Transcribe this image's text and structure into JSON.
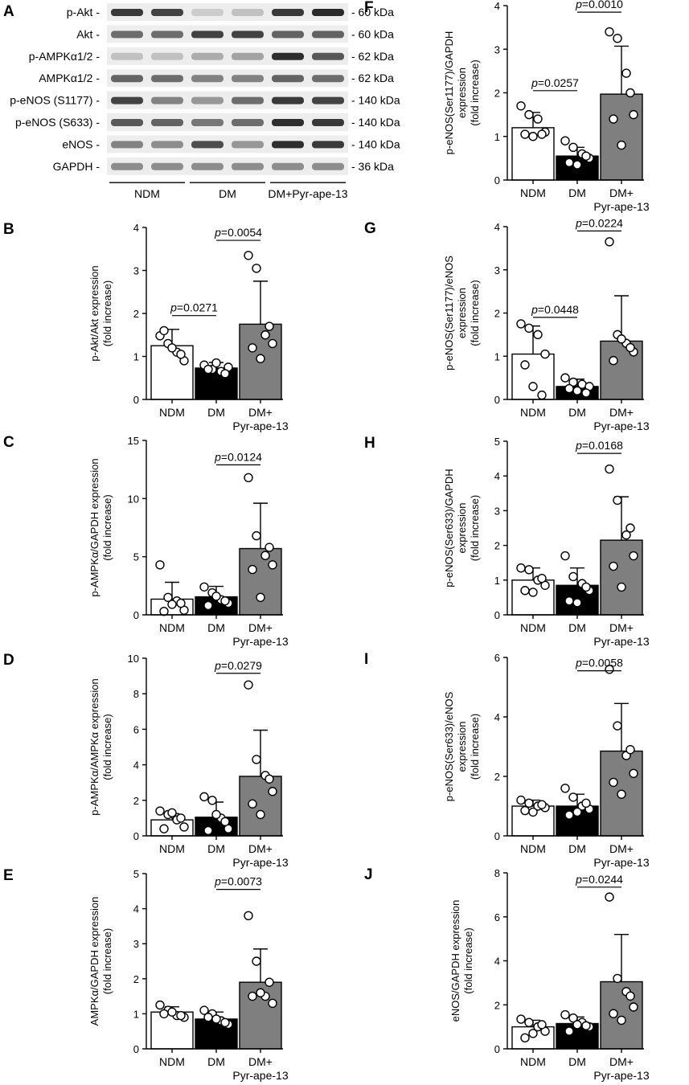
{
  "western_blot": {
    "panel": "A",
    "rows": [
      {
        "label": "p-Akt -",
        "size": "- 60 kDa",
        "intensities": [
          0.85,
          0.8,
          0.15,
          0.2,
          0.85,
          0.92
        ]
      },
      {
        "label": "Akt -",
        "size": "- 60 kDa",
        "intensities": [
          0.6,
          0.6,
          0.8,
          0.8,
          0.65,
          0.65
        ]
      },
      {
        "label": "p-AMPKα1/2 -",
        "size": "- 62 kDa",
        "intensities": [
          0.2,
          0.2,
          0.3,
          0.35,
          0.9,
          0.7
        ]
      },
      {
        "label": "AMPKα1/2 -",
        "size": "- 62 kDa",
        "intensities": [
          0.65,
          0.6,
          0.5,
          0.5,
          0.65,
          0.6
        ]
      },
      {
        "label": "p-eNOS (S1177) -",
        "size": "- 140 kDa",
        "intensities": [
          0.8,
          0.5,
          0.4,
          0.6,
          0.85,
          0.8
        ]
      },
      {
        "label": "p-eNOS (S633) -",
        "size": "- 140 kDa",
        "intensities": [
          0.7,
          0.65,
          0.55,
          0.6,
          0.9,
          0.85
        ]
      },
      {
        "label": "eNOS -",
        "size": "- 140 kDa",
        "intensities": [
          0.5,
          0.45,
          0.75,
          0.4,
          0.9,
          0.85
        ]
      },
      {
        "label": "GAPDH -",
        "size": "- 36 kDa",
        "intensities": [
          0.45,
          0.45,
          0.45,
          0.45,
          0.45,
          0.45
        ]
      }
    ],
    "groups": [
      "NDM",
      "DM",
      "DM+Pyr-ape-13"
    ]
  },
  "chart_data": [
    {
      "panel": "B",
      "type": "bar",
      "ylabel_lines": [
        "p-Akt/Akt expression",
        "(fold increase)"
      ],
      "ylim": [
        0,
        4
      ],
      "yticks": [
        0,
        1,
        2,
        3,
        4
      ],
      "categories": [
        "NDM",
        "DM",
        "DM+",
        "Pyr-ape-13"
      ],
      "bars": [
        {
          "mean": 1.25,
          "sd": 0.38,
          "points": [
            1.48,
            1.3,
            1.1,
            0.9,
            1.6,
            1.2,
            1.05
          ]
        },
        {
          "mean": 0.73,
          "sd": 0.13,
          "points": [
            0.8,
            0.7,
            0.65,
            0.75,
            0.7,
            0.85,
            0.6
          ]
        },
        {
          "mean": 1.75,
          "sd": 1.0,
          "points": [
            3.35,
            3.05,
            1.5,
            1.3,
            1.2,
            0.95,
            1.7
          ]
        }
      ],
      "comparisons": [
        {
          "p": "=0.0271",
          "from": 0,
          "to": 1,
          "y": 1.95
        },
        {
          "p": "=0.0054",
          "from": 1,
          "to": 2,
          "y": 3.7
        }
      ]
    },
    {
      "panel": "C",
      "type": "bar",
      "ylabel_lines": [
        "p-AMPKα/GAPDH expression",
        "(fold increase)"
      ],
      "ylim": [
        0,
        15
      ],
      "yticks": [
        0,
        5,
        10,
        15
      ],
      "categories": [
        "NDM",
        "DM",
        "DM+",
        "Pyr-ape-13"
      ],
      "bars": [
        {
          "mean": 1.35,
          "sd": 1.45,
          "points": [
            4.3,
            1.5,
            1.2,
            0.4,
            0.3,
            0.9,
            1.0
          ]
        },
        {
          "mean": 1.55,
          "sd": 0.9,
          "points": [
            2.4,
            1.9,
            1.3,
            1.0,
            0.8,
            1.6,
            1.2
          ]
        },
        {
          "mean": 5.7,
          "sd": 3.9,
          "points": [
            11.8,
            6.8,
            5.1,
            4.3,
            3.9,
            1.5,
            5.8
          ]
        }
      ],
      "comparisons": [
        {
          "p": "=0.0124",
          "from": 1,
          "to": 2,
          "y": 12.9
        }
      ]
    },
    {
      "panel": "D",
      "type": "bar",
      "ylabel_lines": [
        "p-AMPKα/AMPKα expression",
        "(fold increase)"
      ],
      "ylim": [
        0,
        10
      ],
      "yticks": [
        0,
        2,
        4,
        6,
        8,
        10
      ],
      "categories": [
        "NDM",
        "DM",
        "DM+",
        "Pyr-ape-13"
      ],
      "bars": [
        {
          "mean": 0.9,
          "sd": 0.35,
          "points": [
            1.4,
            1.2,
            0.9,
            0.5,
            0.4,
            1.3,
            1.0
          ]
        },
        {
          "mean": 1.05,
          "sd": 0.85,
          "points": [
            2.2,
            2.0,
            1.0,
            0.4,
            0.3,
            1.2,
            0.8
          ]
        },
        {
          "mean": 3.35,
          "sd": 2.6,
          "points": [
            8.5,
            4.3,
            3.4,
            2.5,
            1.8,
            1.2,
            3.2
          ]
        }
      ],
      "comparisons": [
        {
          "p": "=0.0279",
          "from": 1,
          "to": 2,
          "y": 9.15
        }
      ]
    },
    {
      "panel": "E",
      "type": "bar",
      "ylabel_lines": [
        "AMPKα/GAPDH expression",
        "(fold increase)"
      ],
      "ylim": [
        0,
        5
      ],
      "yticks": [
        0,
        1,
        2,
        3,
        4,
        5
      ],
      "categories": [
        "NDM",
        "DM",
        "DM+",
        "Pyr-ape-13"
      ],
      "bars": [
        {
          "mean": 1.05,
          "sd": 0.15,
          "points": [
            1.25,
            1.1,
            0.95,
            0.9,
            1.0,
            1.05,
            0.95
          ]
        },
        {
          "mean": 0.85,
          "sd": 0.2,
          "points": [
            1.1,
            1.0,
            0.8,
            0.7,
            0.9,
            0.85,
            0.75
          ]
        },
        {
          "mean": 1.9,
          "sd": 0.95,
          "points": [
            3.8,
            2.5,
            1.5,
            1.3,
            1.5,
            1.6,
            1.9
          ]
        }
      ],
      "comparisons": [
        {
          "p": "=0.0073",
          "from": 1,
          "to": 2,
          "y": 4.55
        }
      ]
    },
    {
      "panel": "F",
      "type": "bar",
      "ylabel_lines": [
        "p-eNOS(Ser1177)/GAPDH",
        "expression",
        "(fold increase)"
      ],
      "ylim": [
        0,
        4
      ],
      "yticks": [
        0,
        1,
        2,
        3,
        4
      ],
      "categories": [
        "NDM",
        "DM",
        "DM+",
        "Pyr-ape-13"
      ],
      "bars": [
        {
          "mean": 1.2,
          "sd": 0.35,
          "points": [
            1.7,
            1.5,
            1.4,
            1.1,
            1.05,
            1.0,
            1.05
          ]
        },
        {
          "mean": 0.55,
          "sd": 0.2,
          "points": [
            0.9,
            0.75,
            0.6,
            0.5,
            0.4,
            0.35,
            0.55
          ]
        },
        {
          "mean": 1.97,
          "sd": 1.1,
          "points": [
            3.4,
            3.25,
            2.45,
            1.5,
            1.4,
            0.8,
            2.0
          ]
        }
      ],
      "comparisons": [
        {
          "p": "=0.0257",
          "from": 0,
          "to": 1,
          "y": 2.05
        },
        {
          "p": "=0.0010",
          "from": 1,
          "to": 2,
          "y": 3.85
        }
      ]
    },
    {
      "panel": "G",
      "type": "bar",
      "ylabel_lines": [
        "p-eNOS(Ser1177)/eNOS",
        "expression",
        "(fold increase)"
      ],
      "ylim": [
        0,
        4
      ],
      "yticks": [
        0,
        1,
        2,
        3,
        4
      ],
      "categories": [
        "NDM",
        "DM",
        "DM+",
        "Pyr-ape-13"
      ],
      "bars": [
        {
          "mean": 1.05,
          "sd": 0.65,
          "points": [
            1.75,
            1.65,
            1.5,
            1.05,
            0.8,
            0.3,
            0.1
          ]
        },
        {
          "mean": 0.3,
          "sd": 0.17,
          "points": [
            0.5,
            0.4,
            0.35,
            0.3,
            0.25,
            0.2,
            0.15
          ]
        },
        {
          "mean": 1.35,
          "sd": 1.05,
          "points": [
            3.65,
            1.5,
            1.3,
            1.1,
            0.9,
            1.4,
            1.2
          ]
        }
      ],
      "comparisons": [
        {
          "p": "=0.0448",
          "from": 0,
          "to": 1,
          "y": 1.9
        },
        {
          "p": "=0.0224",
          "from": 1,
          "to": 2,
          "y": 3.9
        }
      ]
    },
    {
      "panel": "H",
      "type": "bar",
      "ylabel_lines": [
        "p-eNOS(Ser633)/GAPDH",
        "expression",
        "(fold increase)"
      ],
      "ylim": [
        0,
        5
      ],
      "yticks": [
        0,
        1,
        2,
        3,
        4,
        5
      ],
      "categories": [
        "NDM",
        "DM",
        "DM+",
        "Pyr-ape-13"
      ],
      "bars": [
        {
          "mean": 1.0,
          "sd": 0.35,
          "points": [
            1.35,
            1.3,
            1.0,
            0.85,
            0.7,
            0.65,
            1.05
          ]
        },
        {
          "mean": 0.85,
          "sd": 0.5,
          "points": [
            1.7,
            1.1,
            0.9,
            0.7,
            0.4,
            0.35,
            0.8
          ]
        },
        {
          "mean": 2.15,
          "sd": 1.25,
          "points": [
            4.2,
            3.3,
            2.3,
            1.7,
            1.4,
            0.8,
            2.5
          ]
        }
      ],
      "comparisons": [
        {
          "p": "=0.0168",
          "from": 1,
          "to": 2,
          "y": 4.65
        }
      ]
    },
    {
      "panel": "I",
      "type": "bar",
      "ylabel_lines": [
        "p-eNOS(Ser633)/eNOS",
        "expression",
        "(fold increase)"
      ],
      "ylim": [
        0,
        6
      ],
      "yticks": [
        0,
        2,
        4,
        6
      ],
      "categories": [
        "NDM",
        "DM",
        "DM+",
        "Pyr-ape-13"
      ],
      "bars": [
        {
          "mean": 1.0,
          "sd": 0.2,
          "points": [
            1.2,
            1.1,
            1.0,
            0.95,
            0.85,
            0.8,
            1.05
          ]
        },
        {
          "mean": 1.0,
          "sd": 0.4,
          "points": [
            1.6,
            1.3,
            1.0,
            0.9,
            0.7,
            0.8,
            1.1
          ]
        },
        {
          "mean": 2.85,
          "sd": 1.6,
          "points": [
            5.6,
            3.7,
            2.7,
            2.1,
            1.8,
            1.4,
            2.9
          ]
        }
      ],
      "comparisons": [
        {
          "p": "=0.0058",
          "from": 1,
          "to": 2,
          "y": 5.55
        }
      ]
    },
    {
      "panel": "J",
      "type": "bar",
      "ylabel_lines": [
        "eNOS/GAPDH expression",
        "(fold increase)"
      ],
      "ylim": [
        0,
        8
      ],
      "yticks": [
        0,
        2,
        4,
        6,
        8
      ],
      "categories": [
        "NDM",
        "DM",
        "DM+",
        "Pyr-ape-13"
      ],
      "bars": [
        {
          "mean": 1.0,
          "sd": 0.3,
          "points": [
            1.35,
            1.2,
            1.0,
            0.8,
            0.5,
            0.7,
            1.1
          ]
        },
        {
          "mean": 1.15,
          "sd": 0.3,
          "points": [
            1.55,
            1.4,
            1.2,
            1.0,
            0.8,
            1.1,
            1.05
          ]
        },
        {
          "mean": 3.05,
          "sd": 2.15,
          "points": [
            6.9,
            3.2,
            2.6,
            1.9,
            1.6,
            1.3,
            2.4
          ]
        }
      ],
      "comparisons": [
        {
          "p": "=0.0244",
          "from": 1,
          "to": 2,
          "y": 7.35
        }
      ]
    }
  ],
  "colors": {
    "ndm": "#ffffff",
    "dm": "#000000",
    "pyr": "#7f7f7f",
    "stroke": "#000000"
  }
}
